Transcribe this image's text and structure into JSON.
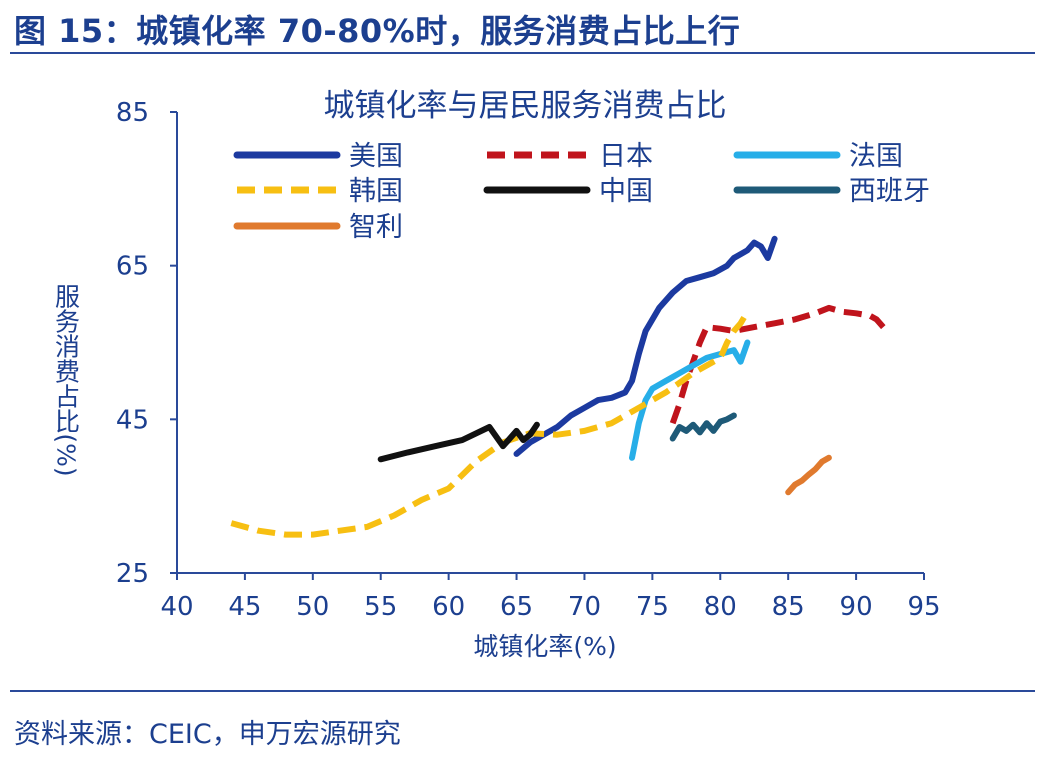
{
  "header": {
    "figure_title": "图 15：城镇化率 70-80%时，服务消费占比上行"
  },
  "footer": {
    "source": "资料来源：CEIC，申万宏源研究"
  },
  "colors": {
    "text": "#1c3f8f",
    "axis": "#2a4a9a",
    "美国": "#1c3aa0",
    "日本": "#c0141c",
    "法国": "#27aee8",
    "韩国": "#f7bf12",
    "中国": "#111111",
    "西班牙": "#1e5a78",
    "智利": "#e07a2e"
  },
  "chart_data": {
    "type": "line",
    "title": "城镇化率与居民服务消费占比",
    "xlabel": "城镇化率(%)",
    "ylabel": "服务消费占比(%)",
    "xlim": [
      40,
      95
    ],
    "ylim": [
      25,
      85
    ],
    "xticks": [
      "40",
      "45",
      "50",
      "55",
      "60",
      "65",
      "70",
      "75",
      "80",
      "85",
      "90",
      "95"
    ],
    "yticks": [
      "25",
      "45",
      "65",
      "85"
    ],
    "grid": false,
    "legend_position": "top",
    "series": [
      {
        "name": "美国",
        "style": "solid",
        "points": [
          [
            65.0,
            40.5
          ],
          [
            66.0,
            42.0
          ],
          [
            67.0,
            43.0
          ],
          [
            68.0,
            44.0
          ],
          [
            69.0,
            45.5
          ],
          [
            70.0,
            46.5
          ],
          [
            71.0,
            47.5
          ],
          [
            72.0,
            47.8
          ],
          [
            73.0,
            48.5
          ],
          [
            73.5,
            50.0
          ],
          [
            74.0,
            53.5
          ],
          [
            74.5,
            56.5
          ],
          [
            75.5,
            59.5
          ],
          [
            76.5,
            61.5
          ],
          [
            77.5,
            63.0
          ],
          [
            78.5,
            63.5
          ],
          [
            79.5,
            64.0
          ],
          [
            80.5,
            65.0
          ],
          [
            81.0,
            66.0
          ],
          [
            82.0,
            67.0
          ],
          [
            82.5,
            68.0
          ],
          [
            83.0,
            67.5
          ],
          [
            83.5,
            66.0
          ],
          [
            84.0,
            68.5
          ]
        ]
      },
      {
        "name": "日本",
        "style": "dashed",
        "points": [
          [
            76.5,
            44.5
          ],
          [
            77.0,
            47.0
          ],
          [
            77.5,
            50.0
          ],
          [
            78.0,
            52.5
          ],
          [
            78.5,
            55.0
          ],
          [
            79.0,
            57.0
          ],
          [
            80.0,
            56.8
          ],
          [
            81.0,
            56.5
          ],
          [
            82.5,
            57.0
          ],
          [
            84.0,
            57.5
          ],
          [
            85.5,
            58.0
          ],
          [
            87.0,
            58.8
          ],
          [
            88.0,
            59.5
          ],
          [
            89.0,
            59.0
          ],
          [
            90.0,
            58.8
          ],
          [
            91.0,
            58.5
          ],
          [
            91.5,
            58.0
          ],
          [
            92.0,
            57.0
          ]
        ]
      },
      {
        "name": "法国",
        "style": "solid",
        "points": [
          [
            73.5,
            40.0
          ],
          [
            74.0,
            44.5
          ],
          [
            74.5,
            47.5
          ],
          [
            75.0,
            49.0
          ],
          [
            76.0,
            50.0
          ],
          [
            77.0,
            51.0
          ],
          [
            78.0,
            52.0
          ],
          [
            79.0,
            53.0
          ],
          [
            80.0,
            53.5
          ],
          [
            81.0,
            54.0
          ],
          [
            81.5,
            52.5
          ],
          [
            82.0,
            55.0
          ]
        ]
      },
      {
        "name": "韩国",
        "style": "dashed",
        "points": [
          [
            44.0,
            31.5
          ],
          [
            46.0,
            30.5
          ],
          [
            48.0,
            30.0
          ],
          [
            50.0,
            30.0
          ],
          [
            52.0,
            30.5
          ],
          [
            54.0,
            31.0
          ],
          [
            56.0,
            32.5
          ],
          [
            58.0,
            34.5
          ],
          [
            60.0,
            36.0
          ],
          [
            62.0,
            39.5
          ],
          [
            64.0,
            42.0
          ],
          [
            66.0,
            43.2
          ],
          [
            68.0,
            43.0
          ],
          [
            70.0,
            43.5
          ],
          [
            72.0,
            44.5
          ],
          [
            74.0,
            46.5
          ],
          [
            76.0,
            48.5
          ],
          [
            78.0,
            51.0
          ],
          [
            79.0,
            52.0
          ],
          [
            80.0,
            53.0
          ],
          [
            80.5,
            55.0
          ],
          [
            81.0,
            56.5
          ],
          [
            81.5,
            57.5
          ],
          [
            82.0,
            59.0
          ]
        ]
      },
      {
        "name": "中国",
        "style": "solid",
        "points": [
          [
            55.0,
            39.8
          ],
          [
            57.0,
            40.7
          ],
          [
            59.0,
            41.5
          ],
          [
            61.0,
            42.3
          ],
          [
            63.0,
            44.0
          ],
          [
            64.0,
            41.5
          ],
          [
            65.0,
            43.5
          ],
          [
            65.5,
            42.3
          ],
          [
            66.0,
            43.0
          ],
          [
            66.5,
            44.3
          ]
        ]
      },
      {
        "name": "西班牙",
        "style": "solid",
        "points": [
          [
            76.5,
            42.5
          ],
          [
            77.0,
            44.0
          ],
          [
            77.5,
            43.5
          ],
          [
            78.0,
            44.3
          ],
          [
            78.5,
            43.3
          ],
          [
            79.0,
            44.5
          ],
          [
            79.5,
            43.5
          ],
          [
            80.0,
            44.7
          ],
          [
            80.5,
            45.0
          ],
          [
            81.0,
            45.5
          ]
        ]
      },
      {
        "name": "智利",
        "style": "solid",
        "points": [
          [
            85.0,
            35.5
          ],
          [
            85.5,
            36.5
          ],
          [
            86.0,
            37.0
          ],
          [
            86.5,
            37.8
          ],
          [
            87.0,
            38.5
          ],
          [
            87.5,
            39.5
          ],
          [
            88.0,
            40.0
          ]
        ]
      }
    ]
  }
}
